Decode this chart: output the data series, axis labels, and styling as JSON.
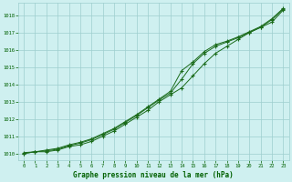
{
  "title": "Graphe pression niveau de la mer (hPa)",
  "bg_color": "#cff0f0",
  "grid_color": "#9ecece",
  "line_color": "#1a6b1a",
  "marker_color": "#1a6b1a",
  "tick_color": "#006000",
  "xlim": [
    -0.5,
    23.5
  ],
  "ylim": [
    1009.6,
    1018.7
  ],
  "yticks": [
    1010,
    1011,
    1012,
    1013,
    1014,
    1015,
    1016,
    1017,
    1018
  ],
  "xticks": [
    0,
    1,
    2,
    3,
    4,
    5,
    6,
    7,
    8,
    9,
    10,
    11,
    12,
    13,
    14,
    15,
    16,
    17,
    18,
    19,
    20,
    21,
    22,
    23
  ],
  "line1_x": [
    0,
    1,
    2,
    3,
    4,
    5,
    6,
    7,
    8,
    9,
    10,
    11,
    12,
    13,
    14,
    15,
    16,
    17,
    18,
    19,
    20,
    21,
    22,
    23
  ],
  "line1_y": [
    1010.0,
    1010.1,
    1010.1,
    1010.2,
    1010.4,
    1010.5,
    1010.7,
    1011.0,
    1011.3,
    1011.7,
    1012.1,
    1012.5,
    1013.0,
    1013.4,
    1013.8,
    1014.5,
    1015.2,
    1015.8,
    1016.2,
    1016.6,
    1017.0,
    1017.3,
    1017.6,
    1018.3
  ],
  "line2_x": [
    0,
    1,
    2,
    3,
    4,
    5,
    6,
    7,
    8,
    9,
    10,
    11,
    12,
    13,
    14,
    15,
    16,
    17,
    18,
    19,
    20,
    21,
    22,
    23
  ],
  "line2_y": [
    1010.0,
    1010.1,
    1010.15,
    1010.25,
    1010.45,
    1010.6,
    1010.8,
    1011.1,
    1011.4,
    1011.8,
    1012.2,
    1012.65,
    1013.1,
    1013.5,
    1014.3,
    1015.2,
    1015.8,
    1016.2,
    1016.45,
    1016.7,
    1017.0,
    1017.3,
    1017.75,
    1018.35
  ],
  "line3_x": [
    0,
    1,
    2,
    3,
    4,
    5,
    6,
    7,
    8,
    9,
    10,
    11,
    12,
    13,
    14,
    15,
    16,
    17,
    18,
    19,
    20,
    21,
    22,
    23
  ],
  "line3_y": [
    1010.05,
    1010.1,
    1010.2,
    1010.3,
    1010.5,
    1010.65,
    1010.85,
    1011.15,
    1011.45,
    1011.85,
    1012.25,
    1012.7,
    1013.15,
    1013.6,
    1014.8,
    1015.3,
    1015.9,
    1016.3,
    1016.5,
    1016.75,
    1017.05,
    1017.35,
    1017.8,
    1018.4
  ]
}
